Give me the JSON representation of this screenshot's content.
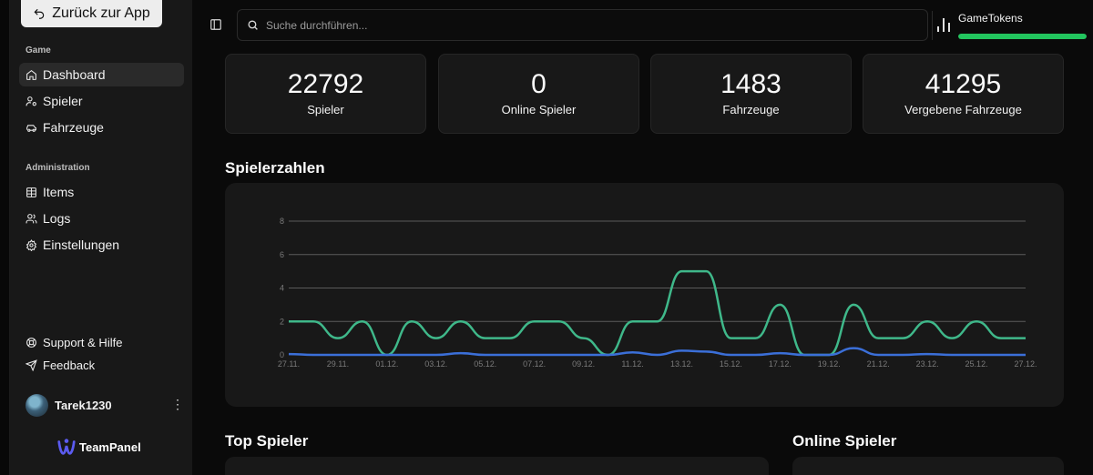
{
  "sidebar": {
    "back_label": "Zurück zur App",
    "game_section": "Game",
    "game_items": [
      {
        "label": "Dashboard",
        "icon": "home-icon"
      },
      {
        "label": "Spieler",
        "icon": "user-cog-icon"
      },
      {
        "label": "Fahrzeuge",
        "icon": "car-icon"
      }
    ],
    "admin_section": "Administration",
    "admin_items": [
      {
        "label": "Items",
        "icon": "table-icon"
      },
      {
        "label": "Logs",
        "icon": "users-icon"
      },
      {
        "label": "Einstellungen",
        "icon": "gear-icon"
      }
    ],
    "support_label": "Support & Hilfe",
    "feedback_label": "Feedback",
    "username": "Tarek1230",
    "brand": "TeamPanel"
  },
  "topbar": {
    "search_placeholder": "Suche durchführen...",
    "tokens_label": "GameTokens",
    "tokens_fraction": 1.0
  },
  "stats": [
    {
      "value": "22792",
      "label": "Spieler"
    },
    {
      "value": "0",
      "label": "Online Spieler"
    },
    {
      "value": "1483",
      "label": "Fahrzeuge"
    },
    {
      "value": "41295",
      "label": "Vergebene Fahrzeuge"
    }
  ],
  "titles": {
    "chart": "Spielerzahlen",
    "top_players": "Top Spieler",
    "online_players": "Online Spieler"
  },
  "colors": {
    "accent": "#22c55e",
    "series_green": "#3fb88a",
    "series_blue": "#3b6fd8"
  },
  "chart_data": {
    "type": "line",
    "title": "",
    "xlabel": "",
    "ylabel": "",
    "ylim": [
      0,
      8
    ],
    "yticks": [
      0,
      2,
      4,
      6,
      8
    ],
    "xtick_labels": [
      "27.11.",
      "29.11.",
      "01.12.",
      "03.12.",
      "05.12.",
      "07.12.",
      "09.12.",
      "11.12.",
      "13.12.",
      "15.12.",
      "17.12.",
      "19.12.",
      "21.12.",
      "23.12.",
      "25.12.",
      "27.12."
    ],
    "x": [
      "27.11.",
      "28.11.",
      "29.11.",
      "30.11.",
      "01.12.",
      "02.12.",
      "03.12.",
      "04.12.",
      "05.12.",
      "06.12.",
      "07.12.",
      "08.12.",
      "09.12.",
      "10.12.",
      "11.12.",
      "12.12.",
      "13.12.",
      "14.12.",
      "15.12.",
      "16.12.",
      "17.12.",
      "18.12.",
      "19.12.",
      "20.12.",
      "21.12.",
      "22.12.",
      "23.12.",
      "24.12.",
      "25.12.",
      "26.12.",
      "27.12."
    ],
    "grid": true,
    "legend": "none",
    "series": [
      {
        "color": "#3fb88a",
        "values": [
          2,
          2,
          1,
          2,
          0,
          2,
          1,
          2,
          1,
          1,
          2,
          2,
          1,
          0,
          2,
          2,
          5,
          5,
          1,
          1,
          3,
          0,
          0,
          3,
          1,
          1,
          2,
          1,
          2,
          1,
          1
        ]
      },
      {
        "color": "#3b6fd8",
        "values": [
          0.05,
          0,
          0,
          0,
          0,
          0,
          0,
          0.1,
          0,
          0,
          0,
          0,
          0,
          0,
          0.15,
          0,
          0.25,
          0.2,
          0,
          0,
          0.1,
          0,
          0,
          0.4,
          0,
          0,
          0.05,
          0,
          0,
          0,
          0
        ]
      }
    ]
  }
}
